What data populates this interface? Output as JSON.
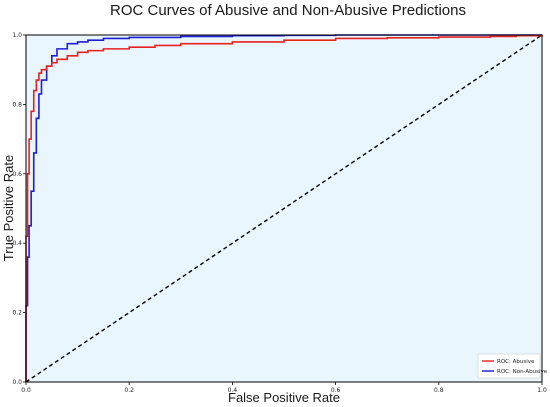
{
  "chart_data": {
    "type": "line",
    "title": "ROC Curves of Abusive and Non-Abusive Predictions",
    "xlabel": "False Positive Rate",
    "ylabel": "True Positive Rate",
    "xlim": [
      0.0,
      1.0
    ],
    "ylim": [
      0.0,
      1.0
    ],
    "xticks": [
      "0.0",
      "0.2",
      "0.4",
      "0.6",
      "0.8",
      "1.0"
    ],
    "yticks": [
      "0.0",
      "0.2",
      "0.4",
      "0.6",
      "0.8",
      "1.0"
    ],
    "plot_background": "#eaf6fd",
    "legend_position": "bottom-right",
    "series": [
      {
        "name": "ROC: Abusive",
        "color": "#e8231f",
        "x": [
          0.0,
          0.0,
          0.003,
          0.006,
          0.01,
          0.015,
          0.02,
          0.025,
          0.03,
          0.04,
          0.05,
          0.06,
          0.08,
          0.1,
          0.12,
          0.15,
          0.2,
          0.25,
          0.3,
          0.4,
          0.5,
          0.6,
          0.7,
          0.8,
          0.9,
          0.95,
          1.0
        ],
        "y": [
          0.0,
          0.42,
          0.6,
          0.7,
          0.78,
          0.84,
          0.87,
          0.89,
          0.9,
          0.91,
          0.92,
          0.93,
          0.94,
          0.95,
          0.955,
          0.96,
          0.965,
          0.97,
          0.975,
          0.98,
          0.985,
          0.99,
          0.992,
          0.994,
          0.996,
          0.998,
          1.0
        ]
      },
      {
        "name": "ROC: Non-Abusive",
        "color": "#1c1fd6",
        "x": [
          0.0,
          0.0,
          0.003,
          0.006,
          0.01,
          0.015,
          0.02,
          0.025,
          0.03,
          0.04,
          0.05,
          0.06,
          0.08,
          0.1,
          0.12,
          0.15,
          0.2,
          0.3,
          0.4,
          0.5,
          0.6,
          0.8,
          1.0
        ],
        "y": [
          0.0,
          0.22,
          0.36,
          0.45,
          0.55,
          0.66,
          0.76,
          0.83,
          0.87,
          0.91,
          0.94,
          0.96,
          0.975,
          0.98,
          0.985,
          0.99,
          0.993,
          0.996,
          0.998,
          0.999,
          1.0,
          1.0,
          1.0
        ]
      },
      {
        "name": "",
        "color": "#000000",
        "dashed": true,
        "x": [
          0.0,
          1.0
        ],
        "y": [
          0.0,
          1.0
        ]
      }
    ]
  }
}
